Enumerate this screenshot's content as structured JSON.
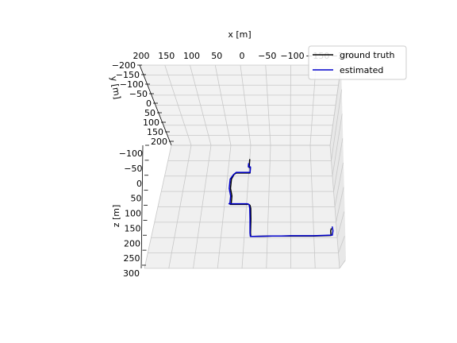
{
  "chart_data": {
    "type": "line",
    "projection": "3d",
    "xlabel": "x [m]",
    "ylabel": "y [m]",
    "zlabel": "z [m]",
    "x_ticks": [
      "200",
      "150",
      "100",
      "50",
      "0",
      "−50",
      "−100",
      "−150",
      "−200"
    ],
    "y_ticks": [
      "−200",
      "−150",
      "−100",
      "−50",
      "0",
      "50",
      "100",
      "150",
      "200"
    ],
    "z_ticks": [
      "−100",
      "−50",
      "0",
      "50",
      "100",
      "150",
      "200",
      "250",
      "300"
    ],
    "xlim": [
      200,
      -200
    ],
    "ylim": [
      -200,
      200
    ],
    "zlim": [
      -100,
      300
    ],
    "grid": true,
    "legend_position": "top-right",
    "series": [
      {
        "name": "ground truth",
        "color": "#000000",
        "x": [
          0,
          0,
          -3,
          -3,
          25,
          30,
          35,
          40,
          40,
          35,
          35,
          37,
          -5,
          -8,
          -10,
          -12,
          -13,
          -14,
          -20,
          -60,
          -80,
          -100,
          -150,
          -187,
          -187,
          -189
        ],
        "y": [
          -22,
          -22,
          -22,
          -22,
          -22,
          -22,
          -22,
          -22,
          -22,
          -22,
          -22,
          -22,
          -22,
          -22,
          -22,
          -22,
          -22,
          -22,
          -22,
          -22,
          -22,
          -22,
          -22,
          -22,
          -22,
          -22
        ],
        "z": [
          -55,
          -28,
          -28,
          -10,
          -10,
          -10,
          -5,
          10,
          40,
          65,
          90,
          92,
          92,
          95,
          105,
          140,
          185,
          196,
          196,
          195,
          195,
          195,
          195,
          193,
          178,
          170
        ]
      },
      {
        "name": "estimated",
        "color": "#0000cc",
        "x": [
          2,
          2,
          -3,
          -3,
          25,
          30,
          36,
          43,
          43,
          38,
          38,
          40,
          -2,
          -6,
          -8,
          -10,
          -12,
          -13,
          -20,
          -60,
          -80,
          -100,
          -150,
          -190,
          -192,
          -191
        ],
        "y": [
          -22,
          -22,
          -22,
          -22,
          -22,
          -22,
          -22,
          -22,
          -22,
          -22,
          -22,
          -22,
          -22,
          -22,
          -22,
          -22,
          -22,
          -22,
          -22,
          -22,
          -22,
          -22,
          -22,
          -22,
          -22,
          -22
        ],
        "z": [
          -42,
          -30,
          -30,
          -12,
          -12,
          -12,
          -5,
          10,
          40,
          65,
          88,
          90,
          90,
          93,
          105,
          140,
          185,
          196,
          196,
          195,
          195,
          194,
          194,
          192,
          178,
          164
        ]
      }
    ]
  }
}
